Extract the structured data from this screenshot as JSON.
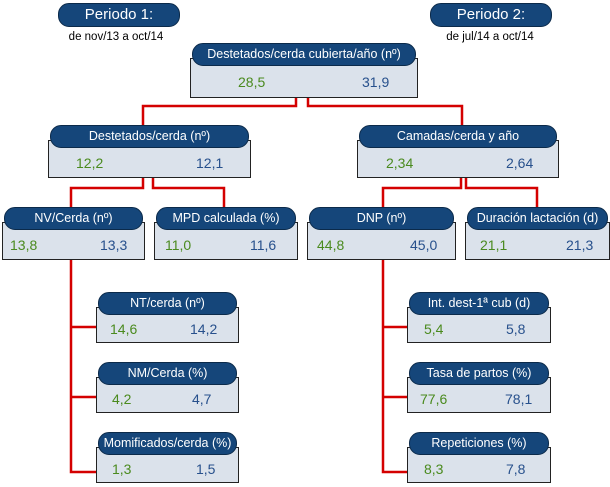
{
  "periods": [
    {
      "label": "Periodo 1:",
      "range": "de nov/13 a oct/14"
    },
    {
      "label": "Periodo 2:",
      "range": "de jul/14 a oct/14"
    }
  ],
  "colors": {
    "header": "#15467a",
    "box": "#dbe2eb",
    "period1_value": "#4a8a1e",
    "period2_value": "#27508c",
    "connector": "#d40000"
  },
  "nodes": [
    {
      "id": "root",
      "title": "Destetados/cerda cubierta/año (nº)",
      "p1": "28,5",
      "p2": "31,9"
    },
    {
      "id": "destetados",
      "title": "Destetados/cerda (nº)",
      "p1": "12,2",
      "p2": "12,1"
    },
    {
      "id": "camadas",
      "title": "Camadas/cerda y año",
      "p1": "2,34",
      "p2": "2,64"
    },
    {
      "id": "nv",
      "title": "NV/Cerda (nº)",
      "p1": "13,8",
      "p2": "13,3"
    },
    {
      "id": "mpd",
      "title": "MPD calculada (%)",
      "p1": "11,0",
      "p2": "11,6"
    },
    {
      "id": "dnp",
      "title": "DNP (nº)",
      "p1": "44,8",
      "p2": "45,0"
    },
    {
      "id": "lactacion",
      "title": "Duración lactación (d)",
      "p1": "21,1",
      "p2": "21,3"
    },
    {
      "id": "nt",
      "title": "NT/cerda (nº)",
      "p1": "14,6",
      "p2": "14,2"
    },
    {
      "id": "nm",
      "title": "NM/Cerda (%)",
      "p1": "4,2",
      "p2": "4,7"
    },
    {
      "id": "momificados",
      "title": "Momificados/cerda (%)",
      "p1": "1,3",
      "p2": "1,5"
    },
    {
      "id": "intdest",
      "title": "Int. dest-1ª cub (d)",
      "p1": "5,4",
      "p2": "5,8"
    },
    {
      "id": "tasa",
      "title": "Tasa de partos (%)",
      "p1": "77,6",
      "p2": "78,1"
    },
    {
      "id": "repeticiones",
      "title": "Repeticiones (%)",
      "p1": "8,3",
      "p2": "7,8"
    }
  ]
}
